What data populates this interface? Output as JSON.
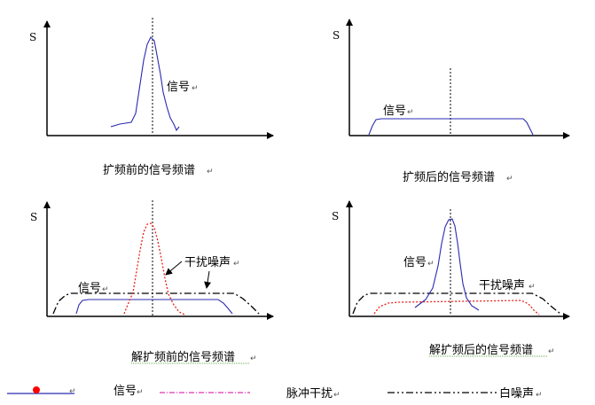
{
  "panels": [
    {
      "axis_label": "S",
      "signal_label": "信号",
      "caption": "扩频前的信号频谱"
    },
    {
      "axis_label": "S",
      "signal_label": "信号",
      "caption": "扩频后的信号频谱"
    },
    {
      "axis_label": "S",
      "signal_label": "信号",
      "noise_label": "干扰噪声",
      "caption": "解扩频前的信号频谱"
    },
    {
      "axis_label": "S",
      "signal_label": "信号",
      "noise_label": "干扰噪声",
      "caption": "解扩频后的信号频谱"
    }
  ],
  "legend": {
    "signal": "信号",
    "pulse": "脉冲干扰",
    "white_noise": "白噪声"
  },
  "paragraph_mark": "↵",
  "colors": {
    "signal": "#2b2bb0",
    "pulse": "#e8201a",
    "white_noise": "#000000",
    "legend_dot": "#ff0000",
    "legend_pink": "#d4009c"
  }
}
